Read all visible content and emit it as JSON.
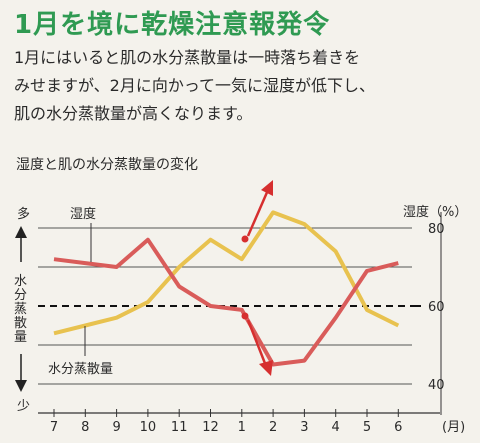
{
  "headline": "1月を境に乾燥注意報発令",
  "body_lines": [
    "1月にはいると肌の水分蒸散量は一時落ち着きを",
    "みせますが、2月に向かって一気に湿度が低下し、",
    "肌の水分蒸散量が高くなります。"
  ],
  "colors": {
    "headline": "#2f9a52",
    "humidity": "#e8c24f",
    "transpiration": "#d95c5a",
    "arrow": "#d62f2f",
    "highlight_month": "#d62f2f"
  },
  "chart_data": {
    "type": "line",
    "title": "湿度と肌の水分蒸散量の変化",
    "categories": [
      "7",
      "8",
      "9",
      "10",
      "11",
      "12",
      "1",
      "1",
      "2",
      "3",
      "4",
      "5",
      "6"
    ],
    "x_tick_labels": [
      "7",
      "8",
      "9",
      "10",
      "11",
      "12",
      "1",
      "2",
      "3",
      "4",
      "5",
      "6"
    ],
    "x_unit": "(月)",
    "highlight_tick": "1",
    "right_axis": {
      "label": "湿度（%）",
      "ticks": [
        "80",
        "60",
        "40"
      ],
      "ylim": [
        35,
        90
      ]
    },
    "left_axis": {
      "top_label": "多",
      "bottom_label": "少",
      "label_chars": [
        "水",
        "分",
        "蒸",
        "散",
        "量"
      ]
    },
    "series": [
      {
        "name": "湿度",
        "axis": "right",
        "values": [
          53,
          55,
          57,
          61,
          70,
          77,
          72,
          72,
          84,
          81,
          74,
          59,
          55
        ]
      },
      {
        "name": "水分蒸散量",
        "axis": "left_relative",
        "values": [
          72,
          71,
          70,
          77,
          65,
          60,
          59,
          59,
          45,
          46,
          57,
          69,
          71
        ]
      }
    ],
    "reference_line": {
      "value": 60
    }
  }
}
